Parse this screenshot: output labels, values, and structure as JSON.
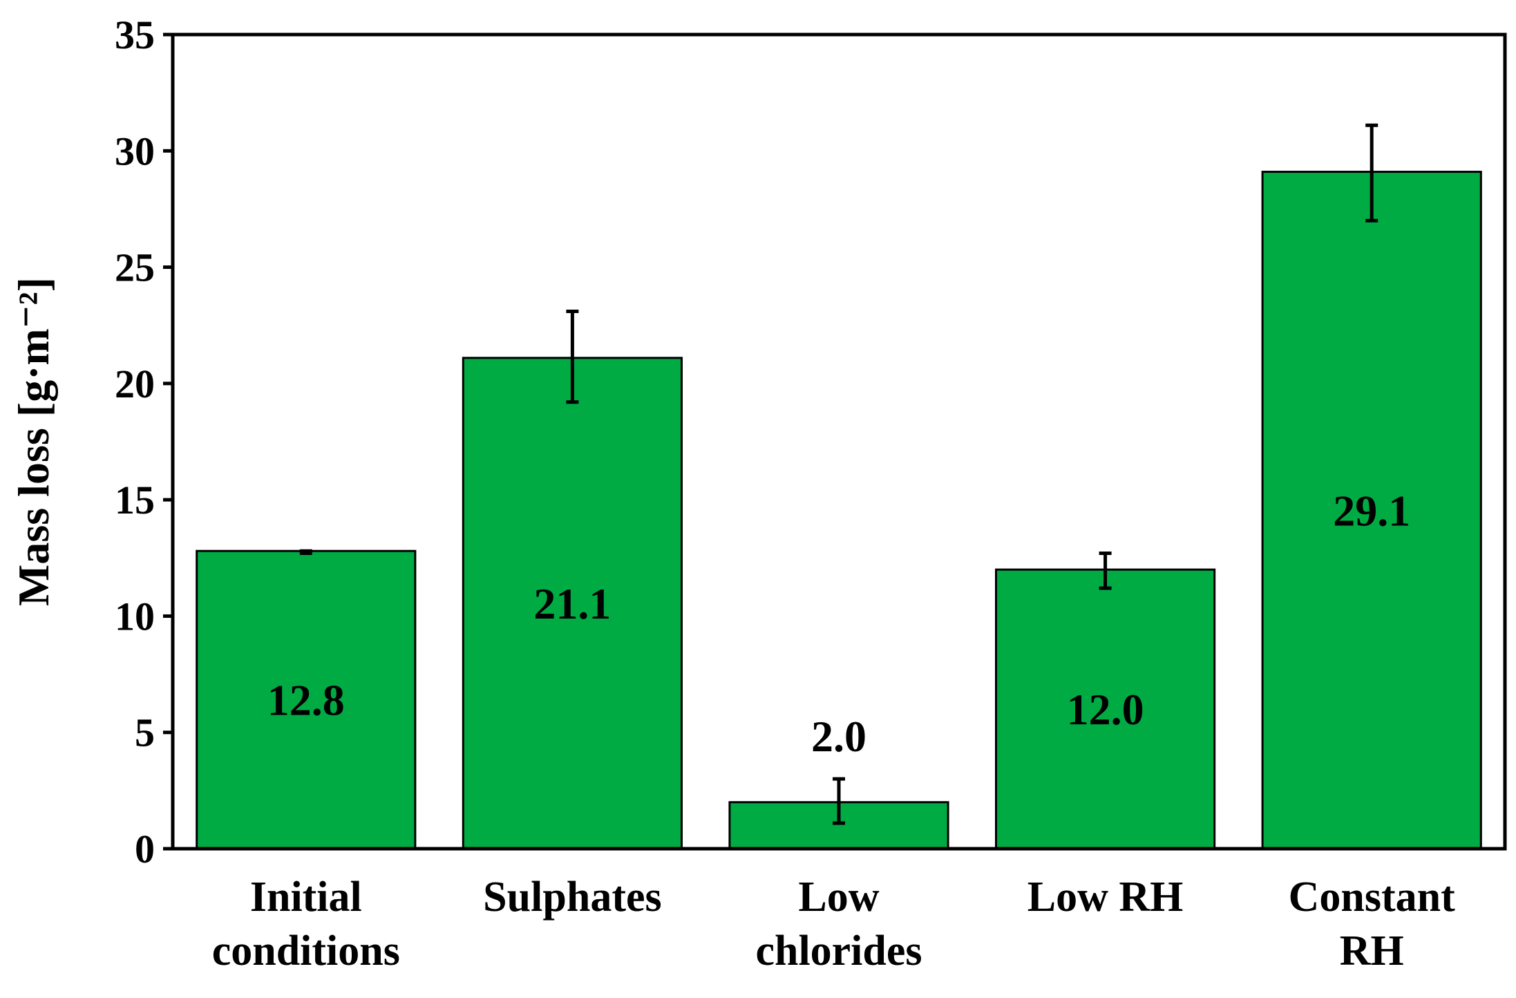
{
  "chart_data": {
    "type": "bar",
    "title": "",
    "xlabel": "",
    "ylabel": "Mass loss [g·m⁻²]",
    "ylim": [
      0,
      35
    ],
    "yticks": [
      0,
      5,
      10,
      15,
      20,
      25,
      30,
      35
    ],
    "grid": false,
    "categories": [
      [
        "Initial",
        "conditions"
      ],
      [
        "Sulphates"
      ],
      [
        "Low",
        "chlorides"
      ],
      [
        "Low RH"
      ],
      [
        "Constant",
        "RH"
      ]
    ],
    "values": [
      12.8,
      21.1,
      2.0,
      12.0,
      29.1
    ],
    "value_labels": [
      "12.8",
      "21.1",
      "2.0",
      "12.0",
      "29.1"
    ],
    "error_low": [
      12.7,
      19.2,
      1.1,
      11.2,
      27.0
    ],
    "error_high": [
      12.8,
      23.1,
      3.0,
      12.7,
      31.1
    ],
    "bar_color": "#00ab44",
    "bar_edge_color": "#000000"
  }
}
